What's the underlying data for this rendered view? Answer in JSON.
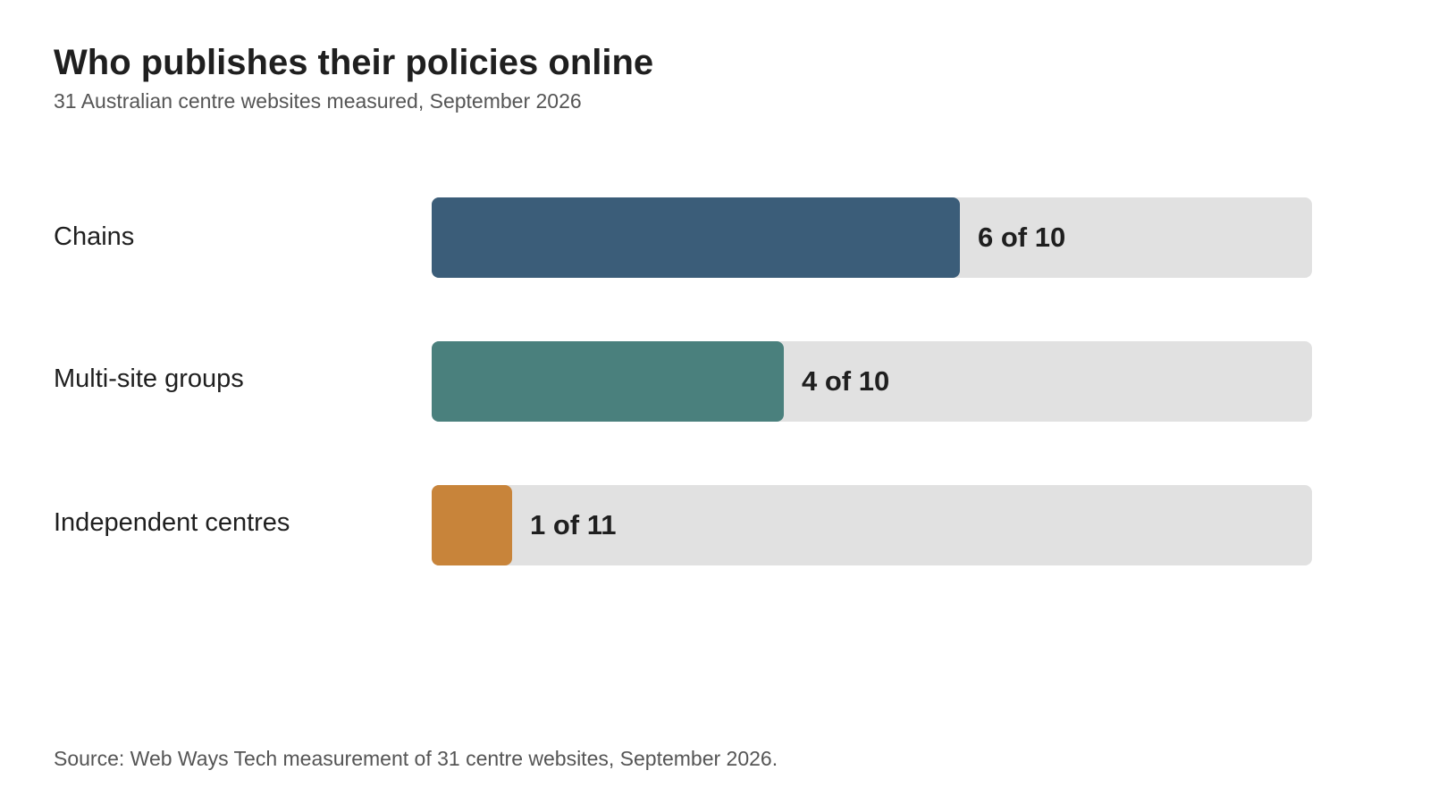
{
  "header": {
    "title": "Who publishes their policies online",
    "subtitle": "31 Australian centre websites measured, September 2026"
  },
  "footer": {
    "source": "Source: Web Ways Tech measurement of 31 centre websites, September 2026."
  },
  "chart_data": {
    "type": "bar",
    "orientation": "horizontal",
    "title": "Who publishes their policies online",
    "subtitle": "31 Australian centre websites measured, September 2026",
    "categories": [
      "Chains",
      "Multi-site groups",
      "Independent centres"
    ],
    "values": [
      6,
      4,
      1
    ],
    "totals": [
      10,
      10,
      11
    ],
    "value_labels": [
      "6 of 10",
      "4 of 10",
      "1 of 11"
    ],
    "colors": [
      "#3b5d79",
      "#4a807d",
      "#c8843a"
    ],
    "track_color": "#e1e1e1",
    "grid": false,
    "legend": "none"
  }
}
